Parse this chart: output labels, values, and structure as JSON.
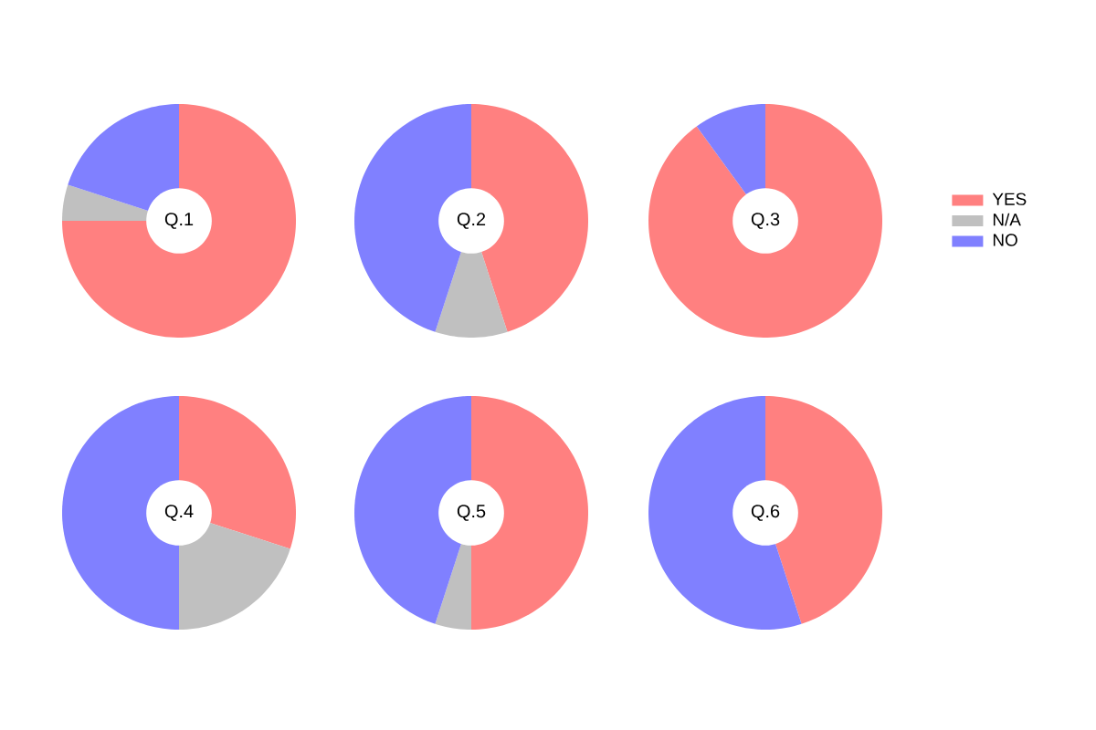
{
  "chart_data": [
    {
      "type": "donut",
      "title": "Q.1",
      "categories": [
        null,
        null,
        null
      ],
      "values": [
        75,
        5,
        20
      ],
      "colors": [
        "#ff8080",
        "#c0c0c0",
        "#8080ff"
      ]
    },
    {
      "type": "donut",
      "title": "Q.2",
      "categories": [
        null,
        null,
        null
      ],
      "values": [
        45,
        10,
        45
      ],
      "colors": [
        "#ff8080",
        "#c0c0c0",
        "#8080ff"
      ]
    },
    {
      "type": "donut",
      "title": "Q.3",
      "categories": [
        "YES",
        "N/A",
        "NO"
      ],
      "values": [
        90,
        0,
        10
      ],
      "colors": [
        "#ff8080",
        "#c0c0c0",
        "#8080ff"
      ],
      "legend": "right"
    },
    {
      "type": "donut",
      "title": "Q.4",
      "categories": [
        null,
        null,
        null
      ],
      "values": [
        30,
        20,
        50
      ],
      "colors": [
        "#ff8080",
        "#c0c0c0",
        "#8080ff"
      ]
    },
    {
      "type": "donut",
      "title": "Q.5",
      "categories": [
        null,
        null,
        null
      ],
      "values": [
        50,
        5,
        45
      ],
      "colors": [
        "#ff8080",
        "#c0c0c0",
        "#8080ff"
      ]
    },
    {
      "type": "donut",
      "title": "Q.6",
      "categories": [
        null,
        null,
        null
      ],
      "values": [
        45,
        0,
        55
      ],
      "colors": [
        "#ff8080",
        "#c0c0c0",
        "#8080ff"
      ]
    }
  ]
}
